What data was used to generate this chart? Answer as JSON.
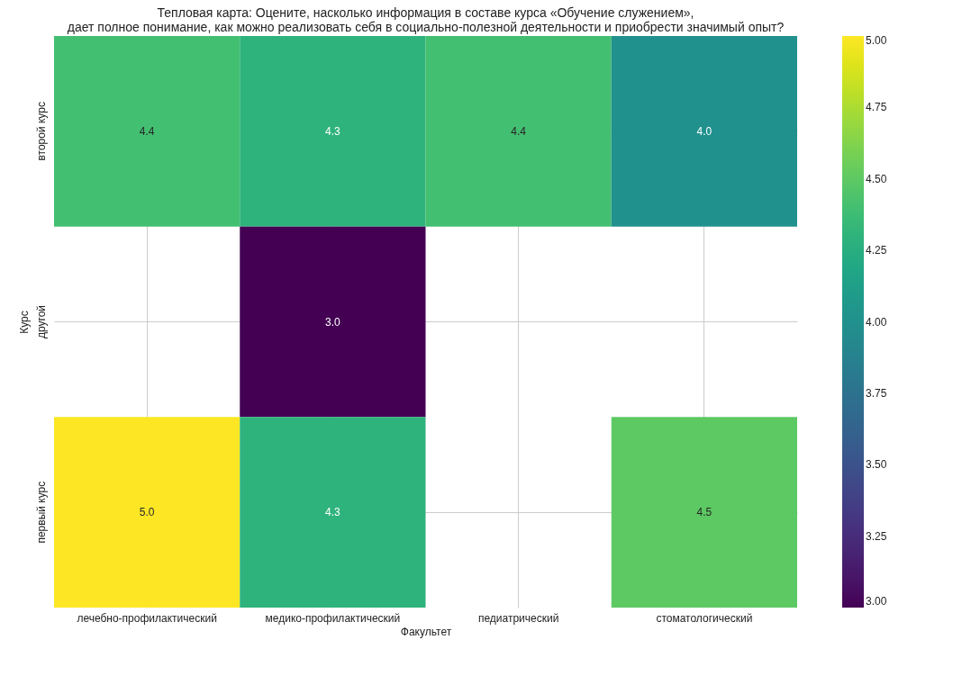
{
  "chart_data": {
    "type": "heatmap",
    "title": "Тепловая карта: Оцените, насколько информация в составе курса «Обучение служением»,\nдает полное понимание, как можно реализовать себя в социально-полезной деятельности и приобрести значимый опыт?",
    "xlabel": "Факультет",
    "ylabel": "Курс",
    "categories": [
      "лечебно-профилактический",
      "медико-профилактический",
      "педиатрический",
      "стоматологический"
    ],
    "y_categories": [
      "второй курс",
      "другой",
      "первый курс"
    ],
    "cells": [
      [
        4.4,
        4.3,
        4.4,
        4.0
      ],
      [
        null,
        3.0,
        null,
        null
      ],
      [
        5.0,
        4.3,
        null,
        4.5
      ]
    ],
    "cell_labels": [
      [
        "4.4",
        "4.3",
        "4.4",
        "4.0"
      ],
      [
        null,
        "3.0",
        null,
        null
      ],
      [
        "5.0",
        "4.3",
        null,
        "4.5"
      ]
    ],
    "grid": true,
    "clim": [
      3,
      5
    ],
    "cticks": [
      {
        "value": 3,
        "label": "3.00"
      },
      {
        "value": 3.25,
        "label": "3.25"
      },
      {
        "value": 3.5,
        "label": "3.50"
      },
      {
        "value": 3.75,
        "label": "3.75"
      },
      {
        "value": 4,
        "label": "4.00"
      },
      {
        "value": 4.25,
        "label": "4.25"
      },
      {
        "value": 4.5,
        "label": "4.50"
      },
      {
        "value": 4.75,
        "label": "4.75"
      },
      {
        "value": 5,
        "label": "5.00"
      }
    ]
  }
}
